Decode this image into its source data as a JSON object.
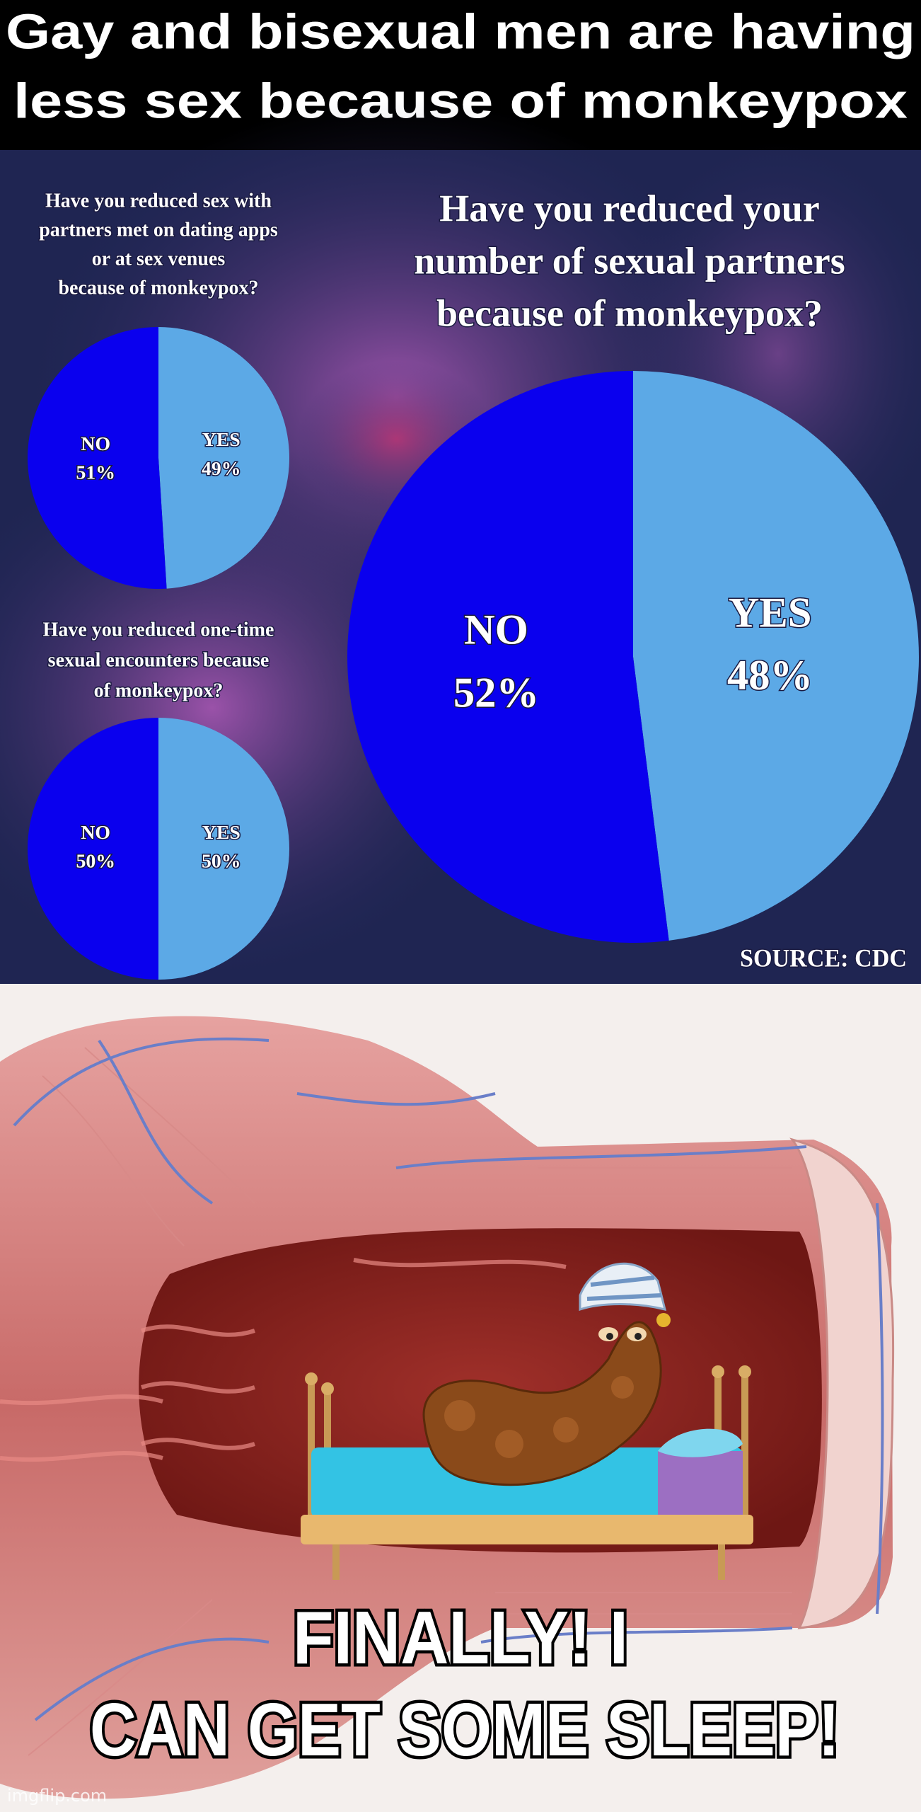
{
  "header_title": [
    "Gay and bisexual men are having",
    "less sex because of monkeypox"
  ],
  "source": "SOURCE: CDC",
  "caption": [
    "FINALLY! I",
    "CAN GET SOME SLEEP!"
  ],
  "watermark": "imgflip.com",
  "chart_data": [
    {
      "type": "pie",
      "title": [
        "Have you reduced sex with",
        "partners met on dating apps",
        "or at sex venues",
        "because of monkeypox?"
      ],
      "categories": [
        "NO",
        "YES"
      ],
      "values": [
        51,
        49
      ],
      "value_labels": [
        "51%",
        "49%"
      ],
      "colors": [
        "#0a00ee",
        "#5ca9e6"
      ]
    },
    {
      "type": "pie",
      "title": [
        "Have you reduced one-time",
        "sexual encounters because",
        "of monkeypox?"
      ],
      "categories": [
        "NO",
        "YES"
      ],
      "values": [
        50,
        50
      ],
      "value_labels": [
        "50%",
        "50%"
      ],
      "colors": [
        "#0a00ee",
        "#5ca9e6"
      ]
    },
    {
      "type": "pie",
      "title": [
        "Have you reduced your",
        "number of sexual partners",
        "because of monkeypox?"
      ],
      "categories": [
        "NO",
        "YES"
      ],
      "values": [
        52,
        48
      ],
      "value_labels": [
        "52%",
        "48%"
      ],
      "colors": [
        "#0a00ee",
        "#5ca9e6"
      ]
    }
  ]
}
